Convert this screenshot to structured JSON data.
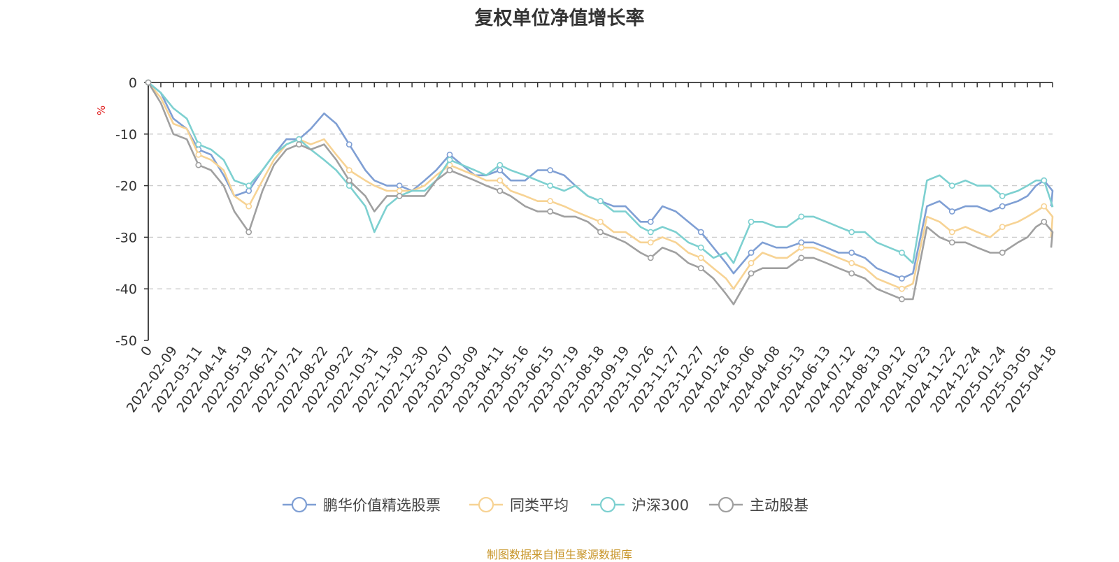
{
  "chart_data": {
    "type": "line",
    "title": "复权单位净值增长率",
    "ylabel": "%",
    "xlabel": "",
    "ylim": [
      -50,
      0
    ],
    "yticks": [
      0,
      -10,
      -20,
      -30,
      -40,
      -50
    ],
    "x_tick_labels": [
      "0",
      "2022-02-09",
      "2022-03-11",
      "2022-04-14",
      "2022-05-19",
      "2022-06-21",
      "2022-07-21",
      "2022-08-22",
      "2022-09-22",
      "2022-10-31",
      "2022-11-30",
      "2022-12-30",
      "2023-02-07",
      "2023-03-09",
      "2023-04-11",
      "2023-05-16",
      "2023-06-15",
      "2023-07-19",
      "2023-08-18",
      "2023-09-19",
      "2023-10-26",
      "2023-11-27",
      "2023-12-27",
      "2024-01-26",
      "2024-03-06",
      "2024-04-08",
      "2024-05-13",
      "2024-06-13",
      "2024-07-12",
      "2024-08-13",
      "2024-09-12",
      "2024-10-23",
      "2024-11-22",
      "2024-12-24",
      "2025-01-24",
      "2025-03-05",
      "2025-04-18"
    ],
    "grid": "horizontal-dashed",
    "legend_position": "bottom",
    "source": "制图数据来自恒生聚源数据库",
    "x": [
      "0",
      "2022-01-20",
      "2022-02-09",
      "2022-02-25",
      "2022-03-11",
      "2022-03-28",
      "2022-04-14",
      "2022-04-29",
      "2022-05-19",
      "2022-06-06",
      "2022-06-21",
      "2022-07-06",
      "2022-07-21",
      "2022-08-05",
      "2022-08-22",
      "2022-09-06",
      "2022-09-22",
      "2022-10-17",
      "2022-10-31",
      "2022-11-15",
      "2022-11-30",
      "2022-12-15",
      "2022-12-30",
      "2023-01-17",
      "2023-02-07",
      "2023-02-22",
      "2023-03-09",
      "2023-03-24",
      "2023-04-11",
      "2023-04-26",
      "2023-05-16",
      "2023-05-31",
      "2023-06-15",
      "2023-07-04",
      "2023-07-19",
      "2023-08-03",
      "2023-08-18",
      "2023-09-04",
      "2023-09-19",
      "2023-10-11",
      "2023-10-26",
      "2023-11-10",
      "2023-11-27",
      "2023-12-12",
      "2023-12-27",
      "2024-01-11",
      "2024-01-26",
      "2024-02-07",
      "2024-03-06",
      "2024-03-21",
      "2024-04-08",
      "2024-04-23",
      "2024-05-13",
      "2024-05-28",
      "2024-06-13",
      "2024-06-27",
      "2024-07-12",
      "2024-07-29",
      "2024-08-13",
      "2024-08-28",
      "2024-09-12",
      "2024-09-30",
      "2024-10-23",
      "2024-11-07",
      "2024-11-22",
      "2024-12-09",
      "2024-12-24",
      "2025-01-09",
      "2025-01-24",
      "2025-02-18",
      "2025-03-05",
      "2025-03-20",
      "2025-04-03",
      "2025-04-18",
      "2025-04-28"
    ],
    "series": [
      {
        "name": "鹏华价值精选股票",
        "color": "#7f9fd4",
        "values": [
          0,
          -2,
          -7,
          -9,
          -13,
          -14,
          -18,
          -22,
          -21,
          -17,
          -14,
          -11,
          -11,
          -9,
          -6,
          -8,
          -12,
          -17,
          -19,
          -20,
          -20,
          -21,
          -19,
          -17,
          -14,
          -16,
          -18,
          -18,
          -17,
          -19,
          -19,
          -17,
          -17,
          -18,
          -20,
          -22,
          -23,
          -24,
          -24,
          -27,
          -27,
          -24,
          -25,
          -27,
          -29,
          -32,
          -35,
          -37,
          -33,
          -31,
          -32,
          -32,
          -31,
          -31,
          -32,
          -33,
          -33,
          -34,
          -36,
          -37,
          -38,
          -37,
          -24,
          -23,
          -25,
          -24,
          -24,
          -25,
          -24,
          -23,
          -22,
          -20,
          -19,
          -21,
          -24
        ]
      },
      {
        "name": "同类平均",
        "color": "#f7d394",
        "values": [
          0,
          -3,
          -8,
          -9,
          -14,
          -15,
          -17,
          -22,
          -24,
          -19,
          -15,
          -12,
          -11,
          -12,
          -11,
          -14,
          -17,
          -19,
          -20,
          -21,
          -21,
          -21,
          -20,
          -18,
          -16,
          -17,
          -18,
          -19,
          -19,
          -21,
          -22,
          -23,
          -23,
          -24,
          -25,
          -26,
          -27,
          -29,
          -29,
          -31,
          -31,
          -30,
          -31,
          -33,
          -34,
          -36,
          -38,
          -40,
          -35,
          -33,
          -34,
          -34,
          -32,
          -32,
          -33,
          -34,
          -35,
          -36,
          -38,
          -39,
          -40,
          -39,
          -26,
          -27,
          -29,
          -28,
          -29,
          -30,
          -28,
          -27,
          -26,
          -25,
          -24,
          -26,
          -30
        ]
      },
      {
        "name": "沪深300",
        "color": "#7dd0d0",
        "values": [
          0,
          -2,
          -5,
          -7,
          -12,
          -13,
          -15,
          -19,
          -20,
          -17,
          -14,
          -12,
          -11,
          -13,
          -15,
          -17,
          -20,
          -24,
          -29,
          -24,
          -22,
          -21,
          -21,
          -19,
          -15,
          -16,
          -17,
          -18,
          -16,
          -17,
          -18,
          -19,
          -20,
          -21,
          -20,
          -22,
          -23,
          -25,
          -25,
          -28,
          -29,
          -28,
          -29,
          -31,
          -32,
          -34,
          -33,
          -35,
          -27,
          -27,
          -28,
          -28,
          -26,
          -26,
          -27,
          -28,
          -29,
          -29,
          -31,
          -32,
          -33,
          -35,
          -19,
          -18,
          -20,
          -19,
          -20,
          -20,
          -22,
          -21,
          -20,
          -19,
          -19,
          -24,
          -24
        ]
      },
      {
        "name": "主动股基",
        "color": "#a0a0a0",
        "values": [
          0,
          -4,
          -10,
          -11,
          -16,
          -17,
          -20,
          -25,
          -29,
          -21,
          -16,
          -13,
          -12,
          -13,
          -12,
          -15,
          -19,
          -22,
          -25,
          -22,
          -22,
          -22,
          -22,
          -19,
          -17,
          -18,
          -19,
          -20,
          -21,
          -22,
          -24,
          -25,
          -25,
          -26,
          -26,
          -27,
          -29,
          -30,
          -31,
          -33,
          -34,
          -32,
          -33,
          -35,
          -36,
          -38,
          -41,
          -43,
          -37,
          -36,
          -36,
          -36,
          -34,
          -34,
          -35,
          -36,
          -37,
          -38,
          -40,
          -41,
          -42,
          -42,
          -28,
          -30,
          -31,
          -31,
          -32,
          -33,
          -33,
          -31,
          -30,
          -28,
          -27,
          -29,
          -32
        ]
      }
    ]
  }
}
